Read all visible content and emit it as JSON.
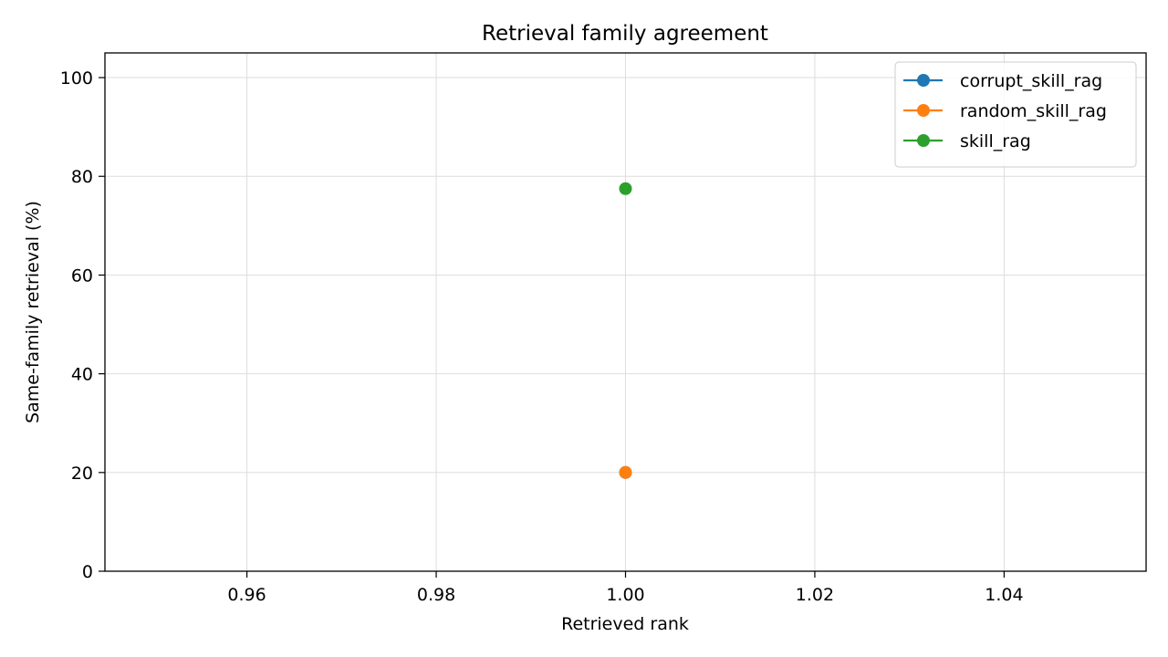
{
  "chart_data": {
    "type": "line",
    "title": "Retrieval family agreement",
    "xlabel": "Retrieved rank",
    "ylabel": "Same-family retrieval (%)",
    "xlim": [
      0.945,
      1.055
    ],
    "ylim": [
      0,
      105
    ],
    "xticks": [
      0.96,
      0.98,
      1.0,
      1.02,
      1.04
    ],
    "xtick_labels": [
      "0.96",
      "0.98",
      "1.00",
      "1.02",
      "1.04"
    ],
    "yticks": [
      0,
      20,
      40,
      60,
      80,
      100
    ],
    "ytick_labels": [
      "0",
      "20",
      "40",
      "60",
      "80",
      "100"
    ],
    "grid": true,
    "legend_position": "top-right",
    "series": [
      {
        "name": "corrupt_skill_rag",
        "color": "#1f77b4",
        "x": [
          1.0
        ],
        "y": [
          20
        ]
      },
      {
        "name": "random_skill_rag",
        "color": "#ff7f0e",
        "x": [
          1.0
        ],
        "y": [
          20
        ]
      },
      {
        "name": "skill_rag",
        "color": "#2ca02c",
        "x": [
          1.0
        ],
        "y": [
          77.5
        ]
      }
    ]
  }
}
